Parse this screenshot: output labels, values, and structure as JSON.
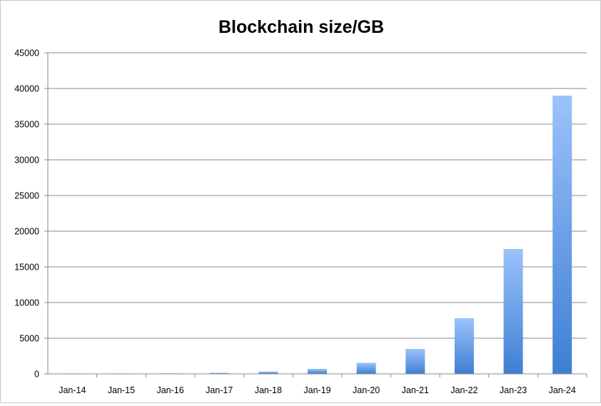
{
  "chart_data": {
    "type": "bar",
    "title": "Blockchain size/GB",
    "xlabel": "",
    "ylabel": "",
    "categories": [
      "Jan-14",
      "Jan-15",
      "Jan-16",
      "Jan-17",
      "Jan-18",
      "Jan-19",
      "Jan-20",
      "Jan-21",
      "Jan-22",
      "Jan-23",
      "Jan-24"
    ],
    "values": [
      15,
      30,
      70,
      150,
      320,
      700,
      1550,
      3500,
      7800,
      17500,
      39000
    ],
    "ylim": [
      0,
      45000
    ],
    "yticks": [
      0,
      5000,
      10000,
      15000,
      20000,
      25000,
      30000,
      35000,
      40000,
      45000
    ],
    "grid": true,
    "legend": "none",
    "colors": {
      "bar_top": "#9cc2fb",
      "bar_bottom": "#3d7fd3",
      "grid": "#8a8a8a",
      "axis": "#8a8a8a"
    }
  }
}
